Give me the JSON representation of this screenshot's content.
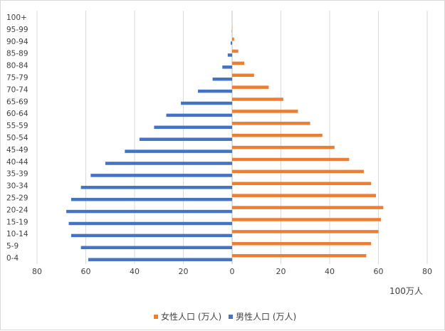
{
  "chart_data": {
    "type": "bar",
    "orientation": "horizontal",
    "title": "",
    "unit_label": "100万人",
    "categories": [
      "0-4",
      "5-9",
      "10-14",
      "15-19",
      "20-24",
      "25-29",
      "30-34",
      "35-39",
      "40-44",
      "45-49",
      "50-54",
      "55-59",
      "60-64",
      "65-69",
      "70-74",
      "75-79",
      "80-84",
      "85-89",
      "90-94",
      "95-99",
      "100+"
    ],
    "series": [
      {
        "name": "女性人口 (万人)",
        "color": "#ed7d31",
        "values": [
          55,
          57,
          60,
          61,
          62,
          59,
          57,
          54,
          48,
          42,
          37,
          32,
          27,
          21,
          15,
          9,
          5,
          2.5,
          0.8,
          0.1,
          0
        ]
      },
      {
        "name": "男性人口 (万人)",
        "color": "#4472c4",
        "values": [
          59,
          62,
          66,
          67,
          68,
          66,
          62,
          58,
          52,
          44,
          38,
          32,
          27,
          21,
          14,
          8,
          4,
          1.8,
          0.6,
          0.1,
          0
        ]
      }
    ],
    "xlim": [
      -80,
      80
    ],
    "x_ticks": [
      "80",
      "60",
      "40",
      "20",
      "0",
      "20",
      "40",
      "60",
      "80"
    ],
    "grid": true,
    "legend_position": "bottom"
  }
}
